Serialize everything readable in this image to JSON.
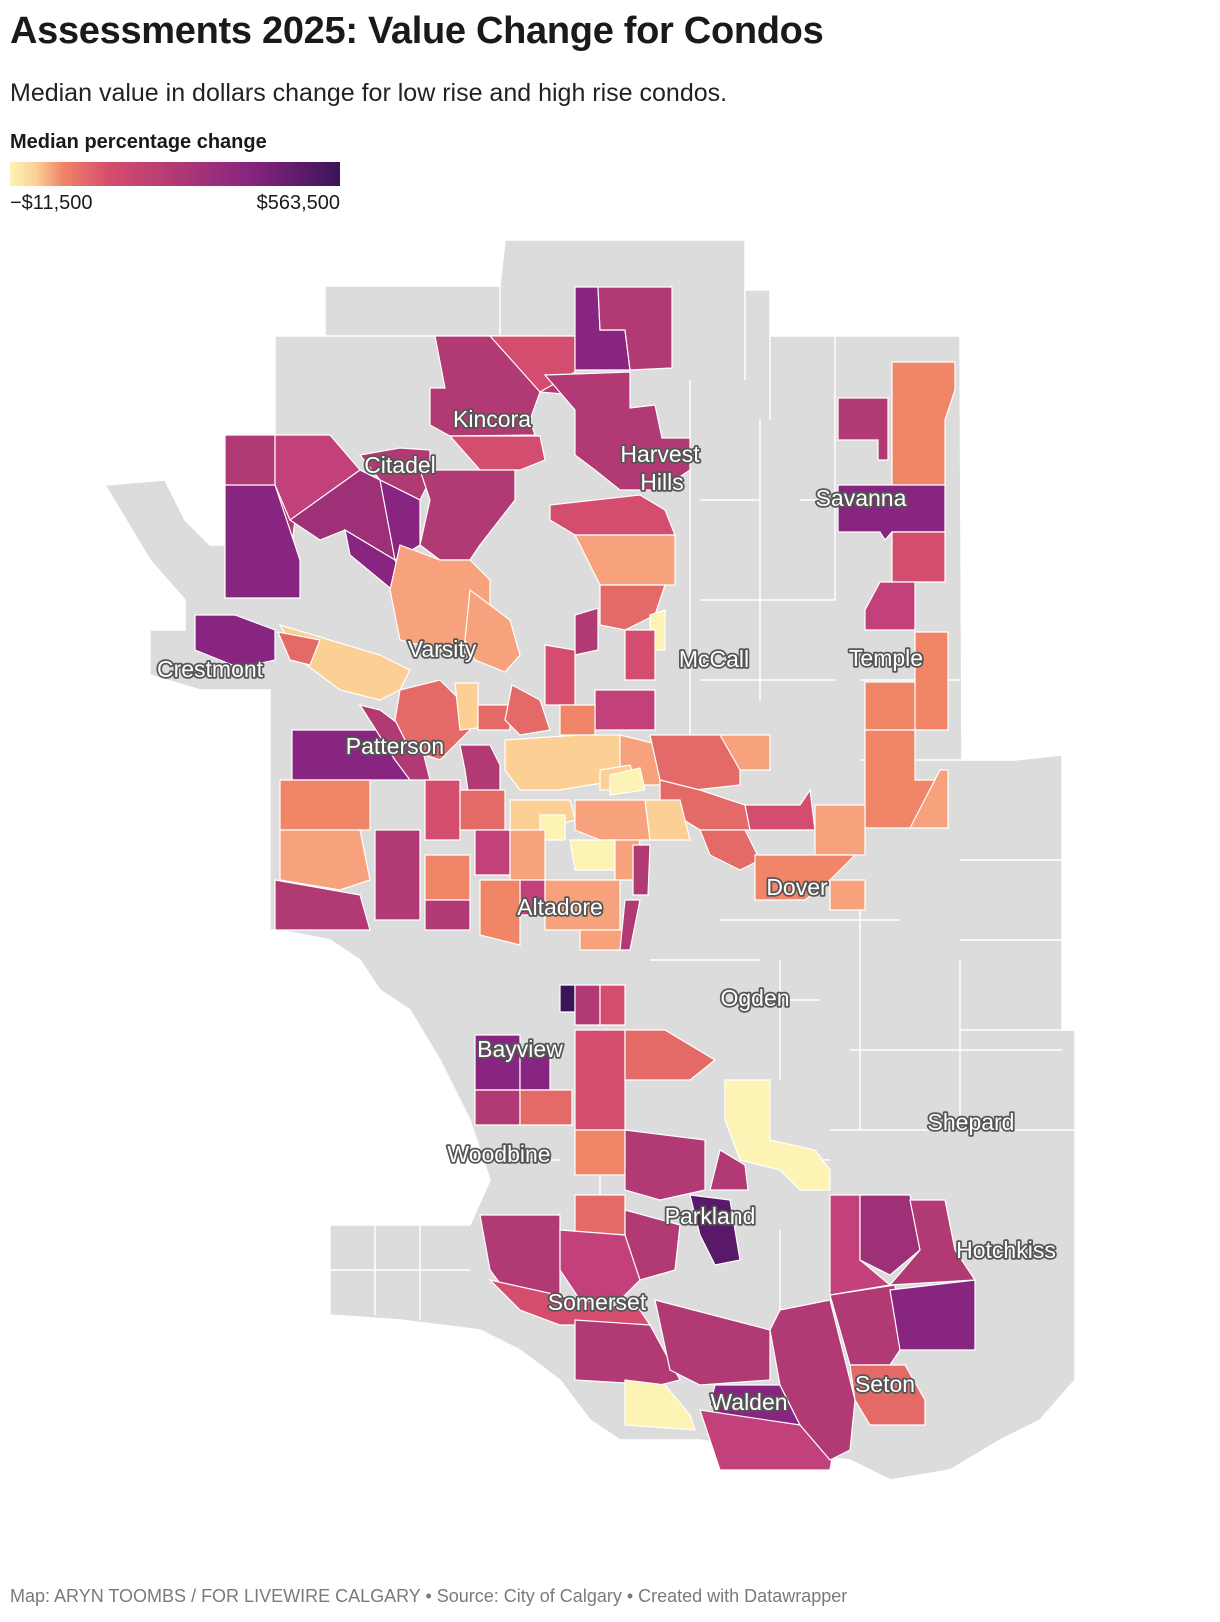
{
  "title": "Assessments 2025: Value Change for Condos",
  "subtitle": "Median value in dollars change for low rise and high rise condos.",
  "legend": {
    "title": "Median percentage change",
    "min_label": "−$11,500",
    "max_label": "$563,500",
    "min_value": -11500,
    "max_value": 563500,
    "colors": [
      "#fdf3b5",
      "#fccf95",
      "#f08568",
      "#d54d6e",
      "#b13a74",
      "#882580",
      "#3c1458"
    ],
    "no_data_color": "#dcdcdc"
  },
  "map": {
    "labels": {
      "kincora": "Kincora",
      "citadel": "Citadel",
      "harvest_hills_1": "Harvest",
      "harvest_hills_2": "Hills",
      "savanna": "Savanna",
      "varsity": "Varsity",
      "crestmont": "Crestmont",
      "mccall": "McCall",
      "temple": "Temple",
      "patterson": "Patterson",
      "altadore": "Altadore",
      "dover": "Dover",
      "ogden": "Ogden",
      "bayview": "Bayview",
      "woodbine": "Woodbine",
      "shepard": "Shepard",
      "parkland": "Parkland",
      "hotchkiss": "Hotchkiss",
      "somerset": "Somerset",
      "seton": "Seton",
      "walden": "Walden"
    }
  },
  "footer": "Map: ARYN TOOMBS / FOR LIVEWIRE CALGARY • Source: City of Calgary • Created with Datawrapper"
}
